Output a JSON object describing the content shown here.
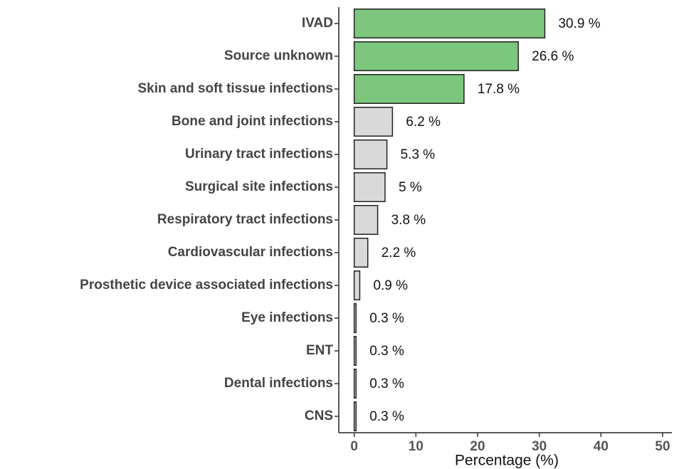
{
  "chart_data": {
    "type": "barh",
    "categories": [
      "IVAD",
      "Source unknown",
      "Skin and soft tissue infections",
      "Bone and joint infections",
      "Urinary tract infections",
      "Surgical site infections",
      "Respiratory tract infections",
      "Cardiovascular infections",
      "Prosthetic device associated infections",
      "Eye infections",
      "ENT",
      "Dental infections",
      "CNS"
    ],
    "values": [
      30.9,
      26.6,
      17.8,
      6.2,
      5.3,
      5,
      3.8,
      2.2,
      0.9,
      0.3,
      0.3,
      0.3,
      0.3
    ],
    "value_labels": [
      "30.9 %",
      "26.6 %",
      "17.8 %",
      "6.2 %",
      "5.3 %",
      "5 %",
      "3.8 %",
      "2.2 %",
      "0.9 %",
      "0.3 %",
      "0.3 %",
      "0.3 %",
      "0.3 %"
    ],
    "colors": [
      "#7dc67e",
      "#7dc67e",
      "#7dc67e",
      "#d9d9d9",
      "#d9d9d9",
      "#d9d9d9",
      "#d9d9d9",
      "#d9d9d9",
      "#d9d9d9",
      "#d9d9d9",
      "#d9d9d9",
      "#d9d9d9",
      "#d9d9d9"
    ],
    "xlabel": "Percentage (%)",
    "xlim": [
      -2.5,
      51.5
    ],
    "xticks": [
      0,
      10,
      20,
      30,
      40,
      50
    ],
    "grid": false
  }
}
